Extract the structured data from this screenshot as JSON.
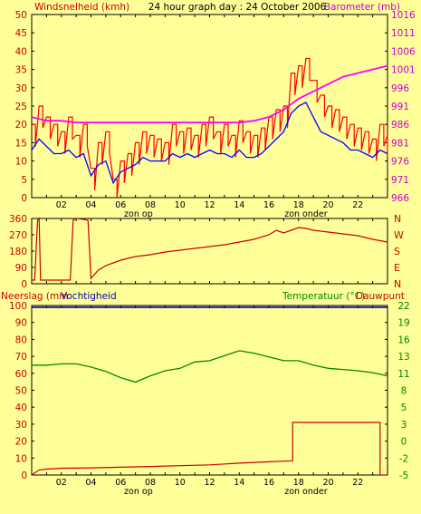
{
  "header": {
    "left": "Windsnelheid (kmh)",
    "center": "24 hour graph day : 24 October 2006",
    "right": "Barometer (mb)"
  },
  "sun_labels": {
    "sunrise": "zon op",
    "sunset": "zon onder"
  },
  "bottom_header": {
    "left1": "Neerslag (mm",
    "left2": "Vochtigheid",
    "right1": "Temperatuur (°C)",
    "right2": "Dauwpunt"
  },
  "colors": {
    "background": "#ffff99",
    "plot_background": "#ffff99",
    "wind_gust": "#ff0000",
    "wind_avg": "#0000ff",
    "barometer": "#ff00ff",
    "direction": "#cc0000",
    "rain": "#cc0000",
    "humidity": "#0000aa",
    "temperature": "#008800",
    "left_axis_text": "#cc0000",
    "right_axis_baro": "#cc00cc",
    "right_axis_temp": "#008800",
    "title_text": "#000000"
  },
  "chart_data": [
    {
      "type": "line",
      "title": "24 hour graph day : 24 October 2006",
      "xlabel": "",
      "x_ticks": [
        "02",
        "04",
        "06",
        "08",
        "10",
        "12",
        "14",
        "16",
        "18",
        "20",
        "22"
      ],
      "x_range": [
        0,
        24
      ],
      "ylabel": "Windsnelheid (kmh)",
      "ylim": [
        0,
        50
      ],
      "y_ticks": [
        "0",
        "5",
        "10",
        "15",
        "20",
        "25",
        "30",
        "35",
        "40",
        "45",
        "50"
      ],
      "y2label": "Barometer (mb)",
      "y2lim": [
        966,
        1016
      ],
      "y2_ticks": [
        "966",
        "971",
        "976",
        "981",
        "986",
        "991",
        "996",
        "1001",
        "1006",
        "1011",
        "1016"
      ],
      "annotations": [
        {
          "x": 7.2,
          "text": "zon op"
        },
        {
          "x": 18.5,
          "text": "zon onder"
        }
      ],
      "series": [
        {
          "name": "Windsnelheid (kmh)",
          "axis": "left",
          "style": "gust",
          "x": [
            0,
            0.5,
            1,
            1.5,
            2,
            2.5,
            3,
            3.5,
            4,
            4.5,
            5,
            5.5,
            6,
            6.5,
            7,
            7.5,
            8,
            8.5,
            9,
            9.5,
            10,
            10.5,
            11,
            11.5,
            12,
            12.5,
            13,
            13.5,
            14,
            14.5,
            15,
            15.5,
            16,
            16.5,
            17,
            17.5,
            18,
            18.5,
            19,
            19.5,
            20,
            20.5,
            21,
            21.5,
            22,
            22.5,
            23,
            23.5,
            24
          ],
          "values": [
            20,
            25,
            22,
            20,
            18,
            22,
            17,
            20,
            8,
            15,
            18,
            5,
            10,
            12,
            15,
            18,
            17,
            16,
            15,
            20,
            18,
            19,
            17,
            20,
            22,
            18,
            20,
            17,
            21,
            18,
            17,
            19,
            22,
            24,
            25,
            34,
            36,
            38,
            32,
            28,
            25,
            24,
            22,
            20,
            19,
            18,
            16,
            20,
            17
          ]
        },
        {
          "name": "",
          "axis": "left",
          "style": "avg",
          "x": [
            0,
            0.5,
            1,
            1.5,
            2,
            2.5,
            3,
            3.5,
            4,
            4.5,
            5,
            5.5,
            6,
            6.5,
            7,
            7.5,
            8,
            8.5,
            9,
            9.5,
            10,
            10.5,
            11,
            11.5,
            12,
            12.5,
            13,
            13.5,
            14,
            14.5,
            15,
            15.5,
            16,
            16.5,
            17,
            17.5,
            18,
            18.5,
            19,
            19.5,
            20,
            20.5,
            21,
            21.5,
            22,
            22.5,
            23,
            23.5,
            24
          ],
          "values": [
            13,
            16,
            14,
            12,
            12,
            13,
            11,
            12,
            6,
            9,
            10,
            4,
            7,
            8,
            9,
            11,
            10,
            10,
            10,
            12,
            11,
            12,
            11,
            12,
            13,
            12,
            12,
            11,
            13,
            11,
            11,
            12,
            14,
            16,
            18,
            23,
            25,
            26,
            22,
            18,
            17,
            16,
            15,
            13,
            13,
            12,
            11,
            13,
            12
          ]
        },
        {
          "name": "Barometer (mb)",
          "axis": "right",
          "x": [
            0,
            1,
            2,
            3,
            4,
            5,
            6,
            7,
            8,
            9,
            10,
            11,
            12,
            13,
            14,
            15,
            16,
            17,
            18,
            19,
            20,
            21,
            22,
            23,
            24
          ],
          "values": [
            988,
            987,
            987,
            986.5,
            986.5,
            986.5,
            986.5,
            986.5,
            986.5,
            986.5,
            986.5,
            986.5,
            986.5,
            986.5,
            986.5,
            987,
            988,
            990,
            993,
            995,
            997,
            999,
            1000,
            1001,
            1002
          ]
        }
      ]
    },
    {
      "type": "line",
      "title": "",
      "x_range": [
        0,
        24
      ],
      "ylim": [
        0,
        360
      ],
      "y_ticks": [
        "0",
        "90",
        "180",
        "270",
        "360"
      ],
      "y2_ticks": [
        "N",
        "E",
        "S",
        "W",
        "N"
      ],
      "series": [
        {
          "name": "",
          "x": [
            0,
            0.2,
            0.4,
            0.5,
            0.6,
            0.8,
            1,
            1.5,
            2,
            2.2,
            2.4,
            2.6,
            2.8,
            3,
            3.5,
            3.8,
            4,
            4.5,
            5,
            6,
            7,
            8,
            9,
            10,
            11,
            12,
            13,
            14,
            15,
            16,
            16.5,
            17,
            17.5,
            18,
            18.5,
            19,
            20,
            21,
            22,
            23,
            24
          ],
          "values": [
            20,
            20,
            350,
            360,
            20,
            20,
            20,
            20,
            20,
            20,
            20,
            20,
            350,
            360,
            355,
            350,
            30,
            75,
            100,
            130,
            150,
            160,
            175,
            185,
            195,
            205,
            215,
            230,
            245,
            270,
            295,
            280,
            295,
            310,
            305,
            295,
            285,
            275,
            265,
            245,
            230
          ]
        }
      ]
    },
    {
      "type": "line",
      "title": "",
      "x_range": [
        0,
        24
      ],
      "x_ticks": [
        "02",
        "04",
        "06",
        "08",
        "10",
        "12",
        "14",
        "16",
        "18",
        "20",
        "22"
      ],
      "ylabel": "Neerslag (mm Vochtigheid",
      "ylim": [
        0,
        100
      ],
      "y_ticks": [
        "0",
        "10",
        "20",
        "30",
        "40",
        "50",
        "60",
        "70",
        "80",
        "90",
        "100"
      ],
      "y2label": "Temperatuur (°C) Dauwpunt",
      "y2lim": [
        -5,
        22
      ],
      "y2_ticks": [
        "-5",
        "-2",
        "0",
        "3",
        "5",
        "8",
        "11",
        "13",
        "16",
        "19",
        "22"
      ],
      "annotations": [
        {
          "x": 7.2,
          "text": "zon op"
        },
        {
          "x": 18.5,
          "text": "zon onder"
        }
      ],
      "series": [
        {
          "name": "Vochtigheid",
          "axis": "left",
          "x": [
            0,
            1,
            2,
            3,
            4,
            5,
            6,
            7,
            8,
            9,
            10,
            11,
            12,
            13,
            14,
            15,
            16,
            17,
            18,
            19,
            20,
            21,
            22,
            23,
            24
          ],
          "values": [
            99,
            99,
            99,
            99,
            99,
            99,
            99,
            99,
            99,
            99,
            99,
            99,
            99,
            99,
            99,
            99,
            99,
            99,
            99,
            99,
            99,
            99,
            99,
            99,
            99
          ]
        },
        {
          "name": "Neerslag (mm",
          "axis": "left",
          "style": "step",
          "x": [
            0,
            0.5,
            1,
            2,
            4,
            6,
            8,
            10,
            12,
            14,
            16,
            17,
            17.6,
            17.6,
            18,
            20,
            22,
            23.5,
            23.5,
            24
          ],
          "values": [
            0,
            3,
            3.5,
            4,
            4.2,
            4.6,
            5,
            5.5,
            6,
            7,
            7.8,
            8.2,
            8.4,
            31,
            31,
            31,
            31,
            31,
            0,
            0
          ]
        },
        {
          "name": "Temperatuur (°C)",
          "axis": "right",
          "x": [
            0,
            1,
            2,
            3,
            4,
            5,
            6,
            7,
            8,
            9,
            10,
            11,
            12,
            13,
            14,
            15,
            16,
            17,
            18,
            19,
            20,
            21,
            22,
            23,
            24
          ],
          "values": [
            12.5,
            12.5,
            12.7,
            12.7,
            12.2,
            11.5,
            10.5,
            9.8,
            10.8,
            11.6,
            12,
            13,
            13.2,
            14,
            14.8,
            14.4,
            13.8,
            13.2,
            13.2,
            12.5,
            12,
            11.8,
            11.6,
            11.3,
            10.8
          ]
        }
      ]
    }
  ]
}
